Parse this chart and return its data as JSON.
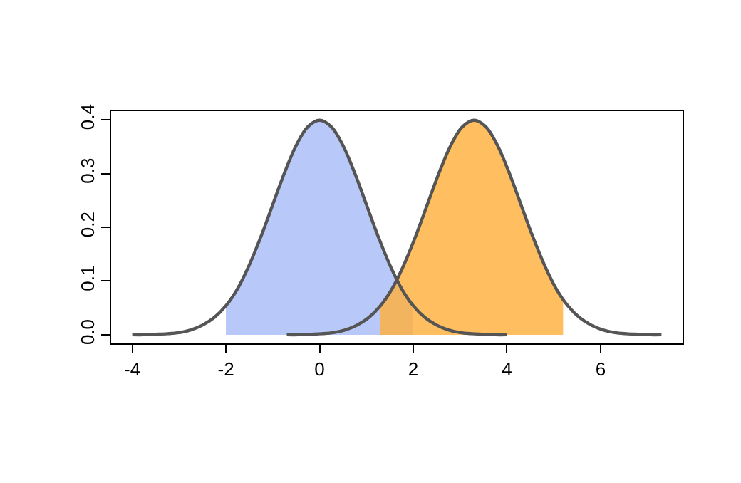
{
  "chart_data": {
    "type": "area",
    "xlim": [
      -4.45,
      7.75
    ],
    "ylim": [
      -0.016,
      0.416
    ],
    "xticks": [
      -4,
      -2,
      0,
      2,
      4,
      6
    ],
    "yticks": [
      {
        "value": 0,
        "label": "0.0"
      },
      {
        "value": 0.1,
        "label": "0.1"
      },
      {
        "value": 0.2,
        "label": "0.2"
      },
      {
        "value": 0.3,
        "label": "0.3"
      },
      {
        "value": 0.4,
        "label": "0.4"
      }
    ],
    "legend": false,
    "series": [
      {
        "color": "#a8bcf8",
        "x": [
          -2,
          -1.75,
          -1.5,
          -1.25,
          -1,
          -0.75,
          -0.5,
          -0.25,
          0,
          0.25,
          0.5,
          0.75,
          1,
          1.25,
          1.5,
          1.75,
          2
        ],
        "values": [
          0.054,
          0.086,
          0.13,
          0.183,
          0.242,
          0.301,
          0.352,
          0.387,
          0.399,
          0.387,
          0.352,
          0.301,
          0.242,
          0.183,
          0.13,
          0.086,
          0.054
        ]
      },
      {
        "color": "#ffb03c",
        "x": [
          1.3,
          1.55,
          1.8,
          2.05,
          2.3,
          2.55,
          2.8,
          3.05,
          3.3,
          3.55,
          3.8,
          4.05,
          4.3,
          4.55,
          4.8,
          5.05,
          5.2
        ],
        "values": [
          0.054,
          0.086,
          0.13,
          0.183,
          0.242,
          0.301,
          0.352,
          0.387,
          0.399,
          0.387,
          0.352,
          0.301,
          0.242,
          0.183,
          0.13,
          0.086,
          0.066
        ]
      },
      {
        "type": "line",
        "color": "#555555",
        "x": [
          -4,
          -3.75,
          -3.5,
          -3.25,
          -3,
          -2.75,
          -2.5,
          -2.25,
          -2,
          -1.75,
          -1.5,
          -1.25,
          -1,
          -0.75,
          -0.5,
          -0.25,
          0,
          0.25,
          0.5,
          0.75,
          1,
          1.25,
          1.5,
          1.75,
          2,
          2.25,
          2.5,
          2.75,
          3,
          3.25,
          3.5,
          3.75,
          4
        ],
        "values": [
          0.0,
          0.0,
          0.001,
          0.002,
          0.004,
          0.009,
          0.018,
          0.032,
          0.054,
          0.086,
          0.13,
          0.183,
          0.242,
          0.301,
          0.352,
          0.387,
          0.399,
          0.387,
          0.352,
          0.301,
          0.242,
          0.183,
          0.13,
          0.086,
          0.054,
          0.032,
          0.018,
          0.009,
          0.004,
          0.002,
          0.001,
          0.0,
          0.0
        ]
      },
      {
        "type": "line",
        "color": "#555555",
        "x": [
          -0.7,
          -0.45,
          -0.2,
          0.05,
          0.3,
          0.55,
          0.8,
          1.05,
          1.3,
          1.55,
          1.8,
          2.05,
          2.3,
          2.55,
          2.8,
          3.05,
          3.3,
          3.55,
          3.8,
          4.05,
          4.3,
          4.55,
          4.8,
          5.05,
          5.3,
          5.55,
          5.8,
          6.05,
          6.3,
          6.55,
          6.8,
          7.05,
          7.3
        ],
        "values": [
          0.0,
          0.0,
          0.001,
          0.002,
          0.004,
          0.009,
          0.018,
          0.032,
          0.054,
          0.086,
          0.13,
          0.183,
          0.242,
          0.301,
          0.352,
          0.387,
          0.399,
          0.387,
          0.352,
          0.301,
          0.242,
          0.183,
          0.13,
          0.086,
          0.054,
          0.032,
          0.018,
          0.009,
          0.004,
          0.002,
          0.001,
          0.0,
          0.0
        ]
      }
    ]
  }
}
